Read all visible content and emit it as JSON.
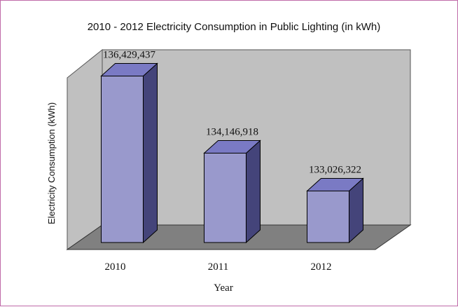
{
  "chart_data": {
    "type": "bar",
    "title": "2010 - 2012 Electricity Consumption in Public Lighting (in kWh)",
    "xlabel": "Year",
    "ylabel": "Electricity Consumption (kWh)",
    "categories": [
      "2010",
      "2011",
      "2012"
    ],
    "values": [
      136429437,
      134146918,
      133026322
    ],
    "data_labels": [
      "136,429,437",
      "134,146,918",
      "133,026,322"
    ],
    "ylim": [
      131500000,
      137000000
    ],
    "grid": false,
    "legend": "none",
    "style": "3d-column",
    "colors": {
      "bar_front": "#9999cc",
      "bar_top": "#7a7ac4",
      "bar_side": "#44447a",
      "bar_outline": "#000000",
      "back_wall": "#c0c0c0",
      "side_wall": "#c0c0c0",
      "floor": "#808080"
    }
  }
}
